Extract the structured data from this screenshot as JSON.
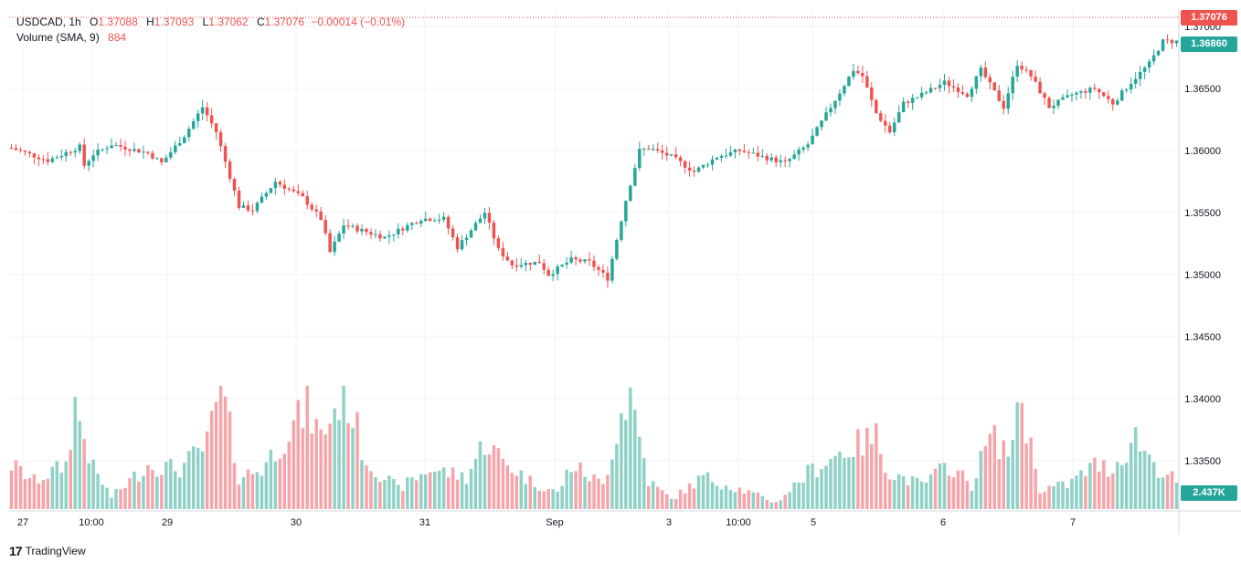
{
  "header": {
    "symbol": "USDCAD",
    "interval": "1h",
    "o_label": "O",
    "o_value": "1.37088",
    "h_label": "H",
    "h_value": "1.37093",
    "l_label": "L",
    "l_value": "1.37062",
    "c_label": "C",
    "c_value": "1.37076",
    "change": "−0.00014 (−0.01%)",
    "volume_label": "Volume (SMA, 9)",
    "volume_value": "884"
  },
  "tags": {
    "last_price": "1.37076",
    "crosshair_price": "1.36860",
    "volume": "2.437K"
  },
  "footer": {
    "brand": "TradingView",
    "logo": "17"
  },
  "colors": {
    "up": "#26a69a",
    "down": "#ef5350",
    "up_vol": "#8fd1c7",
    "down_vol": "#f5a5a9",
    "grid": "#f0f3fa",
    "axis_text": "#131722",
    "dark_tag": "#26a69a"
  },
  "chart_data": {
    "type": "candlestick",
    "title": "USDCAD, 1h",
    "x_ticks": [
      "27",
      "10:00",
      "29",
      "30",
      "31",
      "Sep",
      "3",
      "10:00",
      "5",
      "6",
      "7"
    ],
    "y_ticks": [
      "1.37000",
      "1.36500",
      "1.36000",
      "1.35500",
      "1.35000",
      "1.34500",
      "1.34000",
      "1.33500"
    ],
    "ylim": [
      1.333,
      1.3715
    ],
    "anchors": [
      {
        "i": 0,
        "p": 1.3602
      },
      {
        "i": 8,
        "p": 1.3592
      },
      {
        "i": 15,
        "p": 1.3603
      },
      {
        "i": 16,
        "p": 1.3588
      },
      {
        "i": 18,
        "p": 1.3597
      },
      {
        "i": 22,
        "p": 1.3605
      },
      {
        "i": 30,
        "p": 1.3598
      },
      {
        "i": 33,
        "p": 1.359
      },
      {
        "i": 38,
        "p": 1.3612
      },
      {
        "i": 42,
        "p": 1.3635
      },
      {
        "i": 45,
        "p": 1.3615
      },
      {
        "i": 50,
        "p": 1.3555
      },
      {
        "i": 53,
        "p": 1.3552
      },
      {
        "i": 58,
        "p": 1.3575
      },
      {
        "i": 64,
        "p": 1.3562
      },
      {
        "i": 68,
        "p": 1.3545
      },
      {
        "i": 70,
        "p": 1.3518
      },
      {
        "i": 73,
        "p": 1.354
      },
      {
        "i": 82,
        "p": 1.353
      },
      {
        "i": 90,
        "p": 1.3545
      },
      {
        "i": 95,
        "p": 1.3545
      },
      {
        "i": 98,
        "p": 1.3522
      },
      {
        "i": 104,
        "p": 1.355
      },
      {
        "i": 107,
        "p": 1.352
      },
      {
        "i": 110,
        "p": 1.3508
      },
      {
        "i": 116,
        "p": 1.351
      },
      {
        "i": 118,
        "p": 1.35
      },
      {
        "i": 123,
        "p": 1.3512
      },
      {
        "i": 127,
        "p": 1.351
      },
      {
        "i": 131,
        "p": 1.3497
      },
      {
        "i": 135,
        "p": 1.356
      },
      {
        "i": 138,
        "p": 1.36
      },
      {
        "i": 140,
        "p": 1.3602
      },
      {
        "i": 145,
        "p": 1.3595
      },
      {
        "i": 150,
        "p": 1.3583
      },
      {
        "i": 155,
        "p": 1.3595
      },
      {
        "i": 160,
        "p": 1.36
      },
      {
        "i": 165,
        "p": 1.3595
      },
      {
        "i": 170,
        "p": 1.359
      },
      {
        "i": 175,
        "p": 1.3605
      },
      {
        "i": 180,
        "p": 1.3635
      },
      {
        "i": 185,
        "p": 1.3665
      },
      {
        "i": 187,
        "p": 1.366
      },
      {
        "i": 190,
        "p": 1.363
      },
      {
        "i": 193,
        "p": 1.3615
      },
      {
        "i": 196,
        "p": 1.3638
      },
      {
        "i": 200,
        "p": 1.3645
      },
      {
        "i": 205,
        "p": 1.3655
      },
      {
        "i": 210,
        "p": 1.3645
      },
      {
        "i": 213,
        "p": 1.3665
      },
      {
        "i": 218,
        "p": 1.3635
      },
      {
        "i": 221,
        "p": 1.367
      },
      {
        "i": 224,
        "p": 1.366
      },
      {
        "i": 228,
        "p": 1.3635
      },
      {
        "i": 233,
        "p": 1.3645
      },
      {
        "i": 238,
        "p": 1.365
      },
      {
        "i": 242,
        "p": 1.3638
      },
      {
        "i": 246,
        "p": 1.3655
      },
      {
        "i": 250,
        "p": 1.367
      },
      {
        "i": 253,
        "p": 1.3688
      },
      {
        "i": 256,
        "p": 1.3688
      }
    ],
    "volume_anchors": [
      {
        "i": 0,
        "v": 0.55
      },
      {
        "i": 5,
        "v": 0.35
      },
      {
        "i": 12,
        "v": 0.55
      },
      {
        "i": 14,
        "v": 1.3
      },
      {
        "i": 18,
        "v": 0.5
      },
      {
        "i": 22,
        "v": 0.15
      },
      {
        "i": 30,
        "v": 0.55
      },
      {
        "i": 37,
        "v": 0.5
      },
      {
        "i": 43,
        "v": 0.8
      },
      {
        "i": 46,
        "v": 1.55
      },
      {
        "i": 50,
        "v": 0.4
      },
      {
        "i": 55,
        "v": 0.5
      },
      {
        "i": 60,
        "v": 0.9
      },
      {
        "i": 65,
        "v": 1.25
      },
      {
        "i": 68,
        "v": 0.9
      },
      {
        "i": 72,
        "v": 1.35
      },
      {
        "i": 74,
        "v": 1.35
      },
      {
        "i": 78,
        "v": 0.6
      },
      {
        "i": 85,
        "v": 0.25
      },
      {
        "i": 92,
        "v": 0.5
      },
      {
        "i": 100,
        "v": 0.4
      },
      {
        "i": 104,
        "v": 0.85
      },
      {
        "i": 108,
        "v": 0.6
      },
      {
        "i": 114,
        "v": 0.35
      },
      {
        "i": 120,
        "v": 0.2
      },
      {
        "i": 123,
        "v": 0.55
      },
      {
        "i": 130,
        "v": 0.3
      },
      {
        "i": 134,
        "v": 1.2
      },
      {
        "i": 136,
        "v": 1.45
      },
      {
        "i": 140,
        "v": 0.35
      },
      {
        "i": 145,
        "v": 0.12
      },
      {
        "i": 152,
        "v": 0.4
      },
      {
        "i": 160,
        "v": 0.25
      },
      {
        "i": 168,
        "v": 0.08
      },
      {
        "i": 175,
        "v": 0.45
      },
      {
        "i": 182,
        "v": 0.7
      },
      {
        "i": 186,
        "v": 0.8
      },
      {
        "i": 190,
        "v": 0.9
      },
      {
        "i": 193,
        "v": 0.45
      },
      {
        "i": 200,
        "v": 0.3
      },
      {
        "i": 206,
        "v": 0.55
      },
      {
        "i": 211,
        "v": 0.3
      },
      {
        "i": 215,
        "v": 0.9
      },
      {
        "i": 220,
        "v": 0.7
      },
      {
        "i": 221,
        "v": 1.55
      },
      {
        "i": 226,
        "v": 0.25
      },
      {
        "i": 232,
        "v": 0.3
      },
      {
        "i": 238,
        "v": 0.55
      },
      {
        "i": 242,
        "v": 0.5
      },
      {
        "i": 247,
        "v": 0.9
      },
      {
        "i": 252,
        "v": 0.5
      },
      {
        "i": 256,
        "v": 0.35
      }
    ]
  }
}
